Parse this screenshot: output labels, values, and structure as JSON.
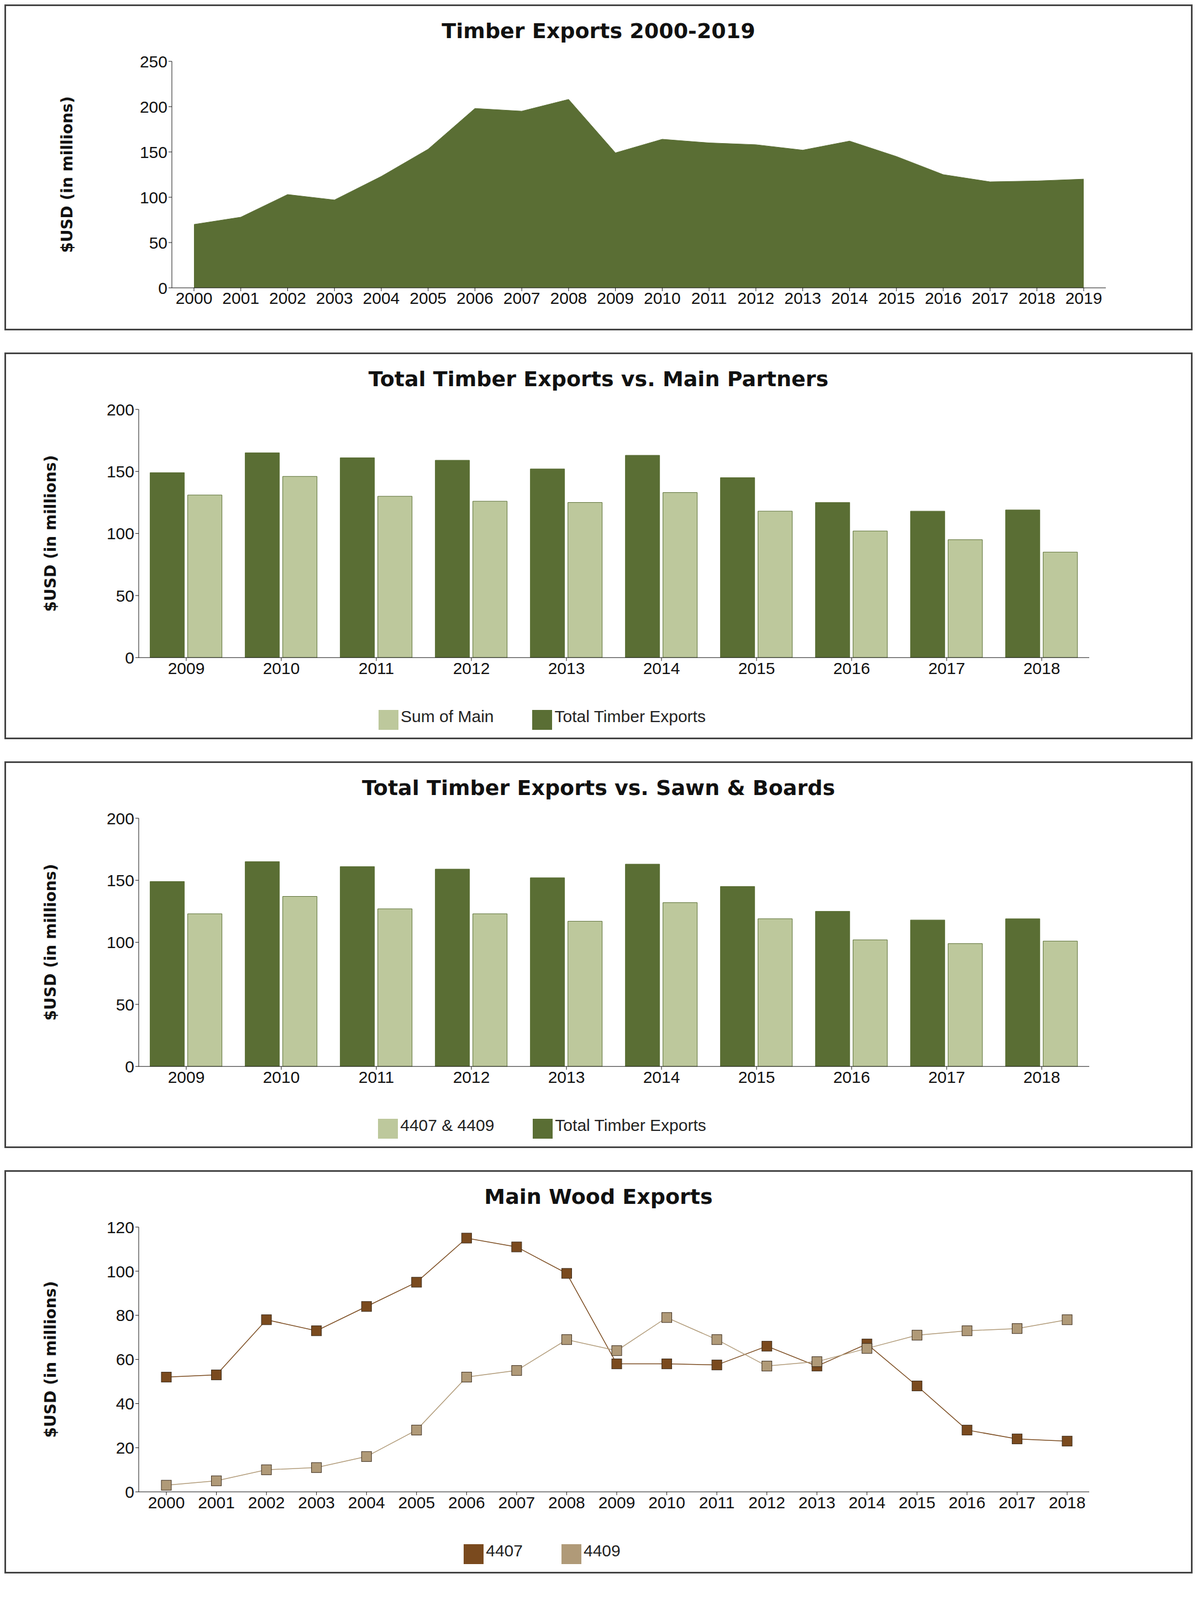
{
  "chart_data": [
    {
      "type": "area",
      "title": "Timber Exports 2000-2019",
      "y_label": "$USD (in millions)",
      "categories": [
        "2000",
        "2001",
        "2002",
        "2003",
        "2004",
        "2005",
        "2006",
        "2007",
        "2008",
        "2009",
        "2010",
        "2011",
        "2012",
        "2013",
        "2014",
        "2015",
        "2016",
        "2017",
        "2018",
        "2019"
      ],
      "values": [
        70,
        78,
        103,
        97,
        123,
        153,
        198,
        195,
        208,
        149,
        164,
        160,
        158,
        152,
        162,
        145,
        125,
        117,
        118,
        120
      ],
      "color": "#5a6e34",
      "ylim": [
        0,
        250
      ],
      "yticks": [
        0,
        50,
        100,
        150,
        200,
        250
      ],
      "grid": false
    },
    {
      "type": "bar",
      "title": "Total Timber Exports vs. Main Partners",
      "y_label": "$USD (in millions)",
      "categories": [
        "2009",
        "2010",
        "2011",
        "2012",
        "2013",
        "2014",
        "2015",
        "2016",
        "2017",
        "2018"
      ],
      "series": [
        {
          "name": "Total Timber Exports",
          "color": "#5a6e34",
          "values": [
            149,
            165,
            161,
            159,
            152,
            163,
            145,
            125,
            118,
            119
          ]
        },
        {
          "name": "Sum of Main",
          "color": "#bdc89c",
          "values": [
            131,
            146,
            130,
            126,
            125,
            133,
            118,
            102,
            95,
            85
          ]
        }
      ],
      "ylim": [
        0,
        200
      ],
      "yticks": [
        0,
        50,
        100,
        150,
        200
      ],
      "grid": false,
      "legend": "bottom"
    },
    {
      "type": "bar",
      "title": "Total Timber Exports vs. Sawn & Boards",
      "y_label": "$USD (in millions)",
      "categories": [
        "2009",
        "2010",
        "2011",
        "2012",
        "2013",
        "2014",
        "2015",
        "2016",
        "2017",
        "2018"
      ],
      "series": [
        {
          "name": "Total Timber Exports",
          "color": "#5a6e34",
          "values": [
            149,
            165,
            161,
            159,
            152,
            163,
            145,
            125,
            118,
            119
          ]
        },
        {
          "name": "4407 & 4409",
          "color": "#bdc89c",
          "values": [
            123,
            137,
            127,
            123,
            117,
            132,
            119,
            102,
            99,
            101
          ]
        }
      ],
      "ylim": [
        0,
        200
      ],
      "yticks": [
        0,
        50,
        100,
        150,
        200
      ],
      "grid": false,
      "legend": "bottom"
    },
    {
      "type": "line",
      "title": "Main Wood Exports",
      "y_label": "$USD (in millions)",
      "categories": [
        "2000",
        "2001",
        "2002",
        "2003",
        "2004",
        "2005",
        "2006",
        "2007",
        "2008",
        "2009",
        "2010",
        "2011",
        "2012",
        "2013",
        "2014",
        "2015",
        "2016",
        "2017",
        "2018"
      ],
      "series": [
        {
          "name": "4407",
          "color": "#7a4a1e",
          "marker": "square",
          "values": [
            52,
            53,
            78,
            73,
            84,
            95,
            115,
            111,
            99,
            58,
            58,
            57.5,
            66,
            57,
            67,
            48,
            28,
            24,
            23
          ]
        },
        {
          "name": "4409",
          "color": "#b09a78",
          "marker": "square",
          "values": [
            3,
            5,
            10,
            11,
            16,
            28,
            52,
            55,
            69,
            64,
            79,
            69,
            57,
            59,
            65,
            71,
            73,
            74,
            78
          ]
        }
      ],
      "ylim": [
        0,
        120
      ],
      "yticks": [
        0,
        20,
        40,
        60,
        80,
        100,
        120
      ],
      "grid": false,
      "legend": "bottom"
    }
  ]
}
